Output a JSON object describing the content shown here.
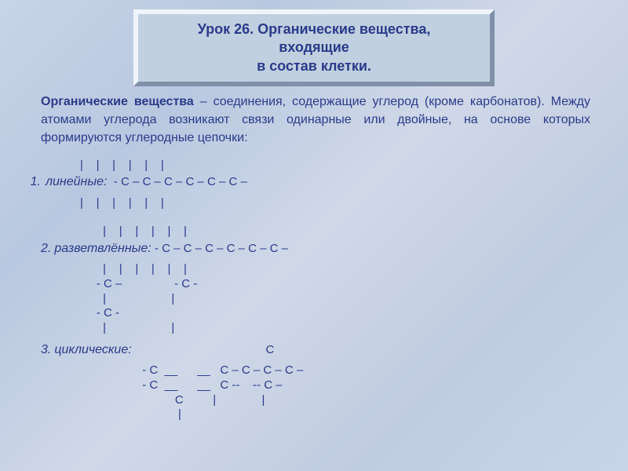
{
  "colors": {
    "text": "#2a3a8a",
    "title_bg": "#c0d0e0",
    "title_border_light": "#f0f4fa",
    "title_border_dark": "#8090a8",
    "slide_bg_gradient": [
      "#c8d4e8",
      "#b8c8e0",
      "#d0d8e8",
      "#c0cce0",
      "#c8d4e8"
    ]
  },
  "typography": {
    "title_fontsize": 18,
    "body_fontsize": 16,
    "chain_fontsize": 15,
    "font_family": "Arial"
  },
  "title": {
    "line1": "Урок 26. Органические вещества,",
    "line2": "входящие",
    "line3": "в состав клетки."
  },
  "definition": {
    "term": "Органические вещества",
    "rest": " – соединения, содержащие углерод (кроме карбонатов). Между атомами углерода возникают связи одинарные или двойные, на основе которых формируются углеродные цепочки:"
  },
  "sections": {
    "s1": {
      "num": "1.",
      "label": "линейные:",
      "ticks": "            |    |    |    |    |    |",
      "chain": "  - С – С – С – С – С – С –",
      "ticks2": "            |    |    |    |    |    |"
    },
    "s2": {
      "num": "2.",
      "label": "разветвлённые:",
      "ticks": "                   |    |    |    |    |    |",
      "chain": " - С – С – С – С – С – С –",
      "ticks2": "                   |    |    |    |    |    |",
      "row2": "                 - С –                - С -",
      "ticks3": "                   |                    |",
      "row3": "                 - С -",
      "ticks4": "                   |                    |"
    },
    "s3": {
      "num": "3.",
      "label": "циклические:",
      "r1": "                                         С",
      "r2": "                               - С  __      __   С – С – С – С –",
      "r3": "                               - С  __      __   С --    -- С –",
      "r4": "                                         С         |              |",
      "r5": "                                          |"
    }
  }
}
